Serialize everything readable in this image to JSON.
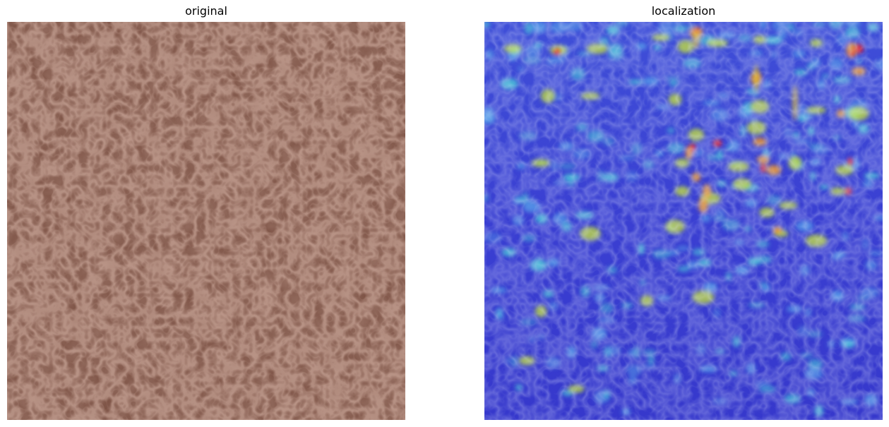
{
  "panels": [
    {
      "title": "original"
    },
    {
      "title": "localization"
    }
  ],
  "colors": {
    "leather_base": "#7a4e40",
    "heatmap_low": "#3a3ad6",
    "heatmap_mid": "#4fd2d8",
    "heatmap_high": "#e8232a"
  }
}
